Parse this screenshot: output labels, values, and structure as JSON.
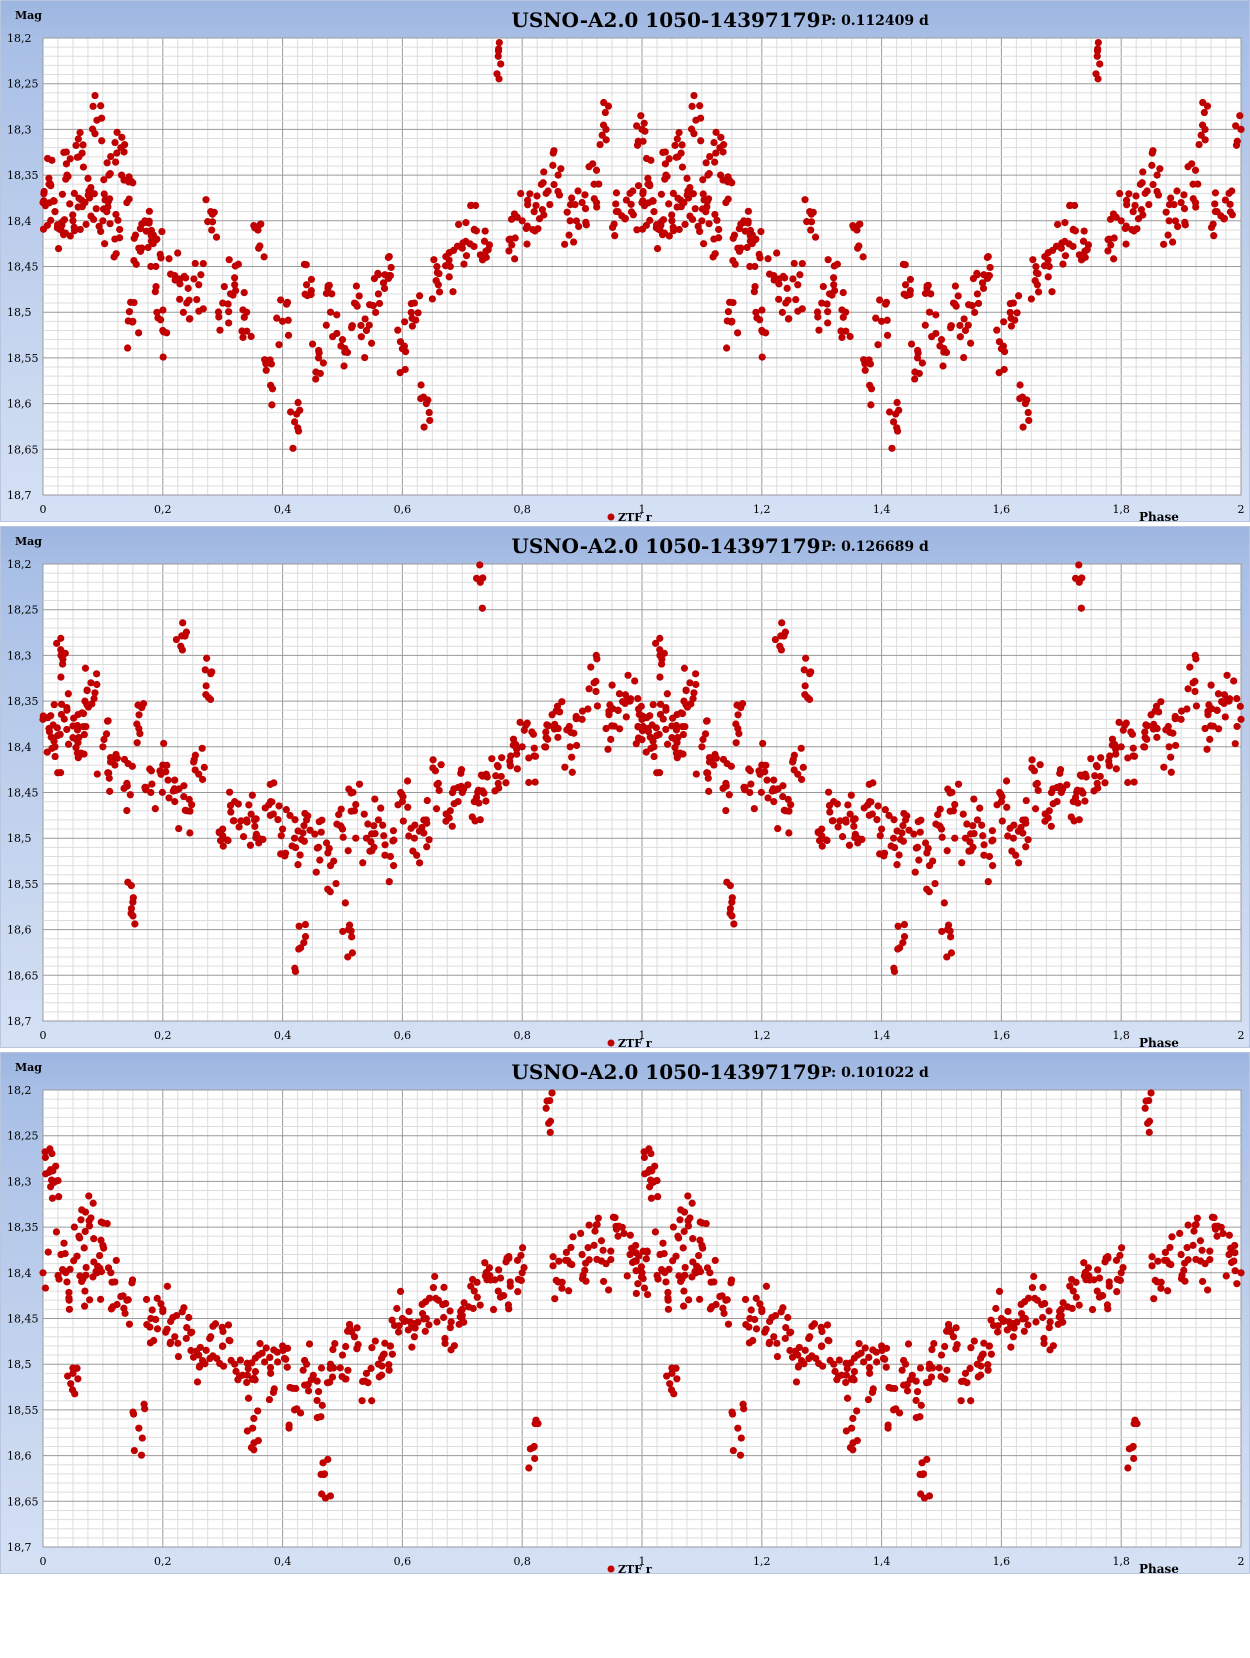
{
  "chart_data": [
    {
      "type": "scatter",
      "title": "USNO-A2.0 1050-14397179",
      "period_label": "P: 0.112409 d",
      "ylabel": "Mag",
      "xlabel": "Phase",
      "legend": "ZTF r",
      "legend_position": "bottom-center",
      "xlim": [
        0,
        2
      ],
      "ylim": [
        18.2,
        18.7
      ],
      "y_inverted": true,
      "x_ticks": [
        "0",
        "0,2",
        "0,4",
        "0,6",
        "0,8",
        "1",
        "1,2",
        "1,4",
        "1,6",
        "1,8",
        "2"
      ],
      "y_ticks": [
        "18,2",
        "18,25",
        "18,3",
        "18,35",
        "18,4",
        "18,45",
        "18,5",
        "18,55",
        "18,6",
        "18,65",
        "18,7"
      ],
      "grid": true,
      "series": [
        {
          "name": "ZTF r",
          "color": "#c00000",
          "points": [
            [
              0.0,
              18.38
            ],
            [
              0.01,
              18.36
            ],
            [
              0.02,
              18.39
            ],
            [
              0.03,
              18.41
            ],
            [
              0.04,
              18.35
            ],
            [
              0.05,
              18.4
            ],
            [
              0.06,
              18.33
            ],
            [
              0.07,
              18.38
            ],
            [
              0.08,
              18.37
            ],
            [
              0.09,
              18.29
            ],
            [
              0.1,
              18.4
            ],
            [
              0.11,
              18.35
            ],
            [
              0.12,
              18.42
            ],
            [
              0.13,
              18.32
            ],
            [
              0.14,
              18.38
            ],
            [
              0.15,
              18.51
            ],
            [
              0.16,
              18.43
            ],
            [
              0.17,
              18.4
            ],
            [
              0.18,
              18.45
            ],
            [
              0.19,
              18.42
            ],
            [
              0.2,
              18.52
            ],
            [
              0.22,
              18.46
            ],
            [
              0.24,
              18.49
            ],
            [
              0.26,
              18.47
            ],
            [
              0.28,
              18.39
            ],
            [
              0.3,
              18.49
            ],
            [
              0.32,
              18.47
            ],
            [
              0.34,
              18.5
            ],
            [
              0.36,
              18.43
            ],
            [
              0.38,
              18.58
            ],
            [
              0.4,
              18.51
            ],
            [
              0.42,
              18.62
            ],
            [
              0.44,
              18.47
            ],
            [
              0.46,
              18.55
            ],
            [
              0.48,
              18.5
            ],
            [
              0.5,
              18.53
            ],
            [
              0.52,
              18.49
            ],
            [
              0.54,
              18.52
            ],
            [
              0.56,
              18.48
            ],
            [
              0.58,
              18.46
            ],
            [
              0.6,
              18.54
            ],
            [
              0.62,
              18.49
            ],
            [
              0.64,
              18.6
            ],
            [
              0.66,
              18.47
            ],
            [
              0.68,
              18.45
            ],
            [
              0.7,
              18.43
            ],
            [
              0.72,
              18.41
            ],
            [
              0.74,
              18.44
            ],
            [
              0.76,
              18.22
            ],
            [
              0.78,
              18.42
            ],
            [
              0.8,
              18.4
            ],
            [
              0.82,
              18.39
            ],
            [
              0.84,
              18.37
            ],
            [
              0.86,
              18.35
            ],
            [
              0.88,
              18.4
            ],
            [
              0.9,
              18.38
            ],
            [
              0.92,
              18.36
            ],
            [
              0.94,
              18.3
            ],
            [
              0.96,
              18.39
            ],
            [
              0.98,
              18.37
            ],
            [
              1.0,
              18.3
            ]
          ]
        }
      ]
    },
    {
      "type": "scatter",
      "title": "USNO-A2.0 1050-14397179",
      "period_label": "P: 0.126689 d",
      "ylabel": "Mag",
      "xlabel": "Phase",
      "legend": "ZTF r",
      "legend_position": "bottom-center",
      "xlim": [
        0,
        2
      ],
      "ylim": [
        18.2,
        18.7
      ],
      "y_inverted": true,
      "x_ticks": [
        "0",
        "0,2",
        "0,4",
        "0,6",
        "0,8",
        "1",
        "1,2",
        "1,4",
        "1,6",
        "1,8",
        "2"
      ],
      "y_ticks": [
        "18,2",
        "18,25",
        "18,3",
        "18,35",
        "18,4",
        "18,45",
        "18,5",
        "18,55",
        "18,6",
        "18,65",
        "18,7"
      ],
      "grid": true,
      "series": [
        {
          "name": "ZTF r",
          "color": "#c00000",
          "points": [
            [
              0.0,
              18.37
            ],
            [
              0.01,
              18.38
            ],
            [
              0.02,
              18.4
            ],
            [
              0.03,
              18.3
            ],
            [
              0.04,
              18.36
            ],
            [
              0.05,
              18.39
            ],
            [
              0.06,
              18.41
            ],
            [
              0.07,
              18.35
            ],
            [
              0.08,
              18.33
            ],
            [
              0.1,
              18.4
            ],
            [
              0.12,
              18.42
            ],
            [
              0.14,
              18.44
            ],
            [
              0.15,
              18.57
            ],
            [
              0.16,
              18.38
            ],
            [
              0.18,
              18.45
            ],
            [
              0.2,
              18.42
            ],
            [
              0.22,
              18.46
            ],
            [
              0.23,
              18.29
            ],
            [
              0.24,
              18.47
            ],
            [
              0.26,
              18.43
            ],
            [
              0.28,
              18.32
            ],
            [
              0.3,
              18.49
            ],
            [
              0.32,
              18.46
            ],
            [
              0.34,
              18.48
            ],
            [
              0.36,
              18.5
            ],
            [
              0.38,
              18.46
            ],
            [
              0.4,
              18.49
            ],
            [
              0.42,
              18.5
            ],
            [
              0.43,
              18.62
            ],
            [
              0.44,
              18.48
            ],
            [
              0.46,
              18.51
            ],
            [
              0.48,
              18.53
            ],
            [
              0.5,
              18.49
            ],
            [
              0.51,
              18.6
            ],
            [
              0.52,
              18.47
            ],
            [
              0.54,
              18.5
            ],
            [
              0.56,
              18.48
            ],
            [
              0.58,
              18.52
            ],
            [
              0.6,
              18.46
            ],
            [
              0.62,
              18.5
            ],
            [
              0.64,
              18.48
            ],
            [
              0.66,
              18.44
            ],
            [
              0.68,
              18.47
            ],
            [
              0.7,
              18.45
            ],
            [
              0.72,
              18.46
            ],
            [
              0.73,
              18.22
            ],
            [
              0.74,
              18.43
            ],
            [
              0.76,
              18.44
            ],
            [
              0.78,
              18.42
            ],
            [
              0.8,
              18.4
            ],
            [
              0.82,
              18.41
            ],
            [
              0.84,
              18.39
            ],
            [
              0.86,
              18.38
            ],
            [
              0.88,
              18.4
            ],
            [
              0.9,
              18.37
            ],
            [
              0.92,
              18.33
            ],
            [
              0.94,
              18.38
            ],
            [
              0.96,
              18.36
            ],
            [
              0.98,
              18.35
            ],
            [
              1.0,
              18.37
            ]
          ]
        }
      ]
    },
    {
      "type": "scatter",
      "title": "USNO-A2.0 1050-14397179",
      "period_label": "P: 0.101022 d",
      "ylabel": "Mag",
      "xlabel": "Phase",
      "legend": "ZTF r",
      "legend_position": "bottom-center",
      "xlim": [
        0,
        2
      ],
      "ylim": [
        18.2,
        18.7
      ],
      "y_inverted": true,
      "x_ticks": [
        "0",
        "0,2",
        "0,4",
        "0,6",
        "0,8",
        "1",
        "1,2",
        "1,4",
        "1,6",
        "1,8",
        "2"
      ],
      "y_ticks": [
        "18,2",
        "18,25",
        "18,3",
        "18,35",
        "18,4",
        "18,45",
        "18,5",
        "18,55",
        "18,6",
        "18,65",
        "18,7"
      ],
      "grid": true,
      "series": [
        {
          "name": "ZTF r",
          "color": "#c00000",
          "points": [
            [
              0.0,
              18.4
            ],
            [
              0.01,
              18.29
            ],
            [
              0.02,
              18.3
            ],
            [
              0.03,
              18.38
            ],
            [
              0.04,
              18.41
            ],
            [
              0.05,
              18.51
            ],
            [
              0.06,
              18.36
            ],
            [
              0.07,
              18.42
            ],
            [
              0.08,
              18.34
            ],
            [
              0.09,
              18.4
            ],
            [
              0.1,
              18.37
            ],
            [
              0.12,
              18.41
            ],
            [
              0.14,
              18.43
            ],
            [
              0.16,
              18.57
            ],
            [
              0.18,
              18.45
            ],
            [
              0.2,
              18.44
            ],
            [
              0.22,
              18.47
            ],
            [
              0.24,
              18.46
            ],
            [
              0.26,
              18.49
            ],
            [
              0.28,
              18.47
            ],
            [
              0.3,
              18.48
            ],
            [
              0.32,
              18.5
            ],
            [
              0.34,
              18.52
            ],
            [
              0.35,
              18.57
            ],
            [
              0.36,
              18.49
            ],
            [
              0.38,
              18.51
            ],
            [
              0.4,
              18.48
            ],
            [
              0.42,
              18.55
            ],
            [
              0.44,
              18.5
            ],
            [
              0.46,
              18.53
            ],
            [
              0.47,
              18.62
            ],
            [
              0.48,
              18.5
            ],
            [
              0.5,
              18.49
            ],
            [
              0.52,
              18.47
            ],
            [
              0.54,
              18.51
            ],
            [
              0.56,
              18.5
            ],
            [
              0.58,
              18.48
            ],
            [
              0.6,
              18.45
            ],
            [
              0.62,
              18.47
            ],
            [
              0.64,
              18.45
            ],
            [
              0.66,
              18.43
            ],
            [
              0.68,
              18.46
            ],
            [
              0.7,
              18.44
            ],
            [
              0.72,
              18.42
            ],
            [
              0.74,
              18.4
            ],
            [
              0.76,
              18.42
            ],
            [
              0.78,
              18.41
            ],
            [
              0.8,
              18.4
            ],
            [
              0.82,
              18.59
            ],
            [
              0.84,
              18.22
            ],
            [
              0.86,
              18.41
            ],
            [
              0.88,
              18.39
            ],
            [
              0.9,
              18.38
            ],
            [
              0.92,
              18.37
            ],
            [
              0.94,
              18.39
            ],
            [
              0.96,
              18.36
            ],
            [
              0.98,
              18.38
            ],
            [
              1.0,
              18.4
            ]
          ]
        }
      ]
    }
  ]
}
